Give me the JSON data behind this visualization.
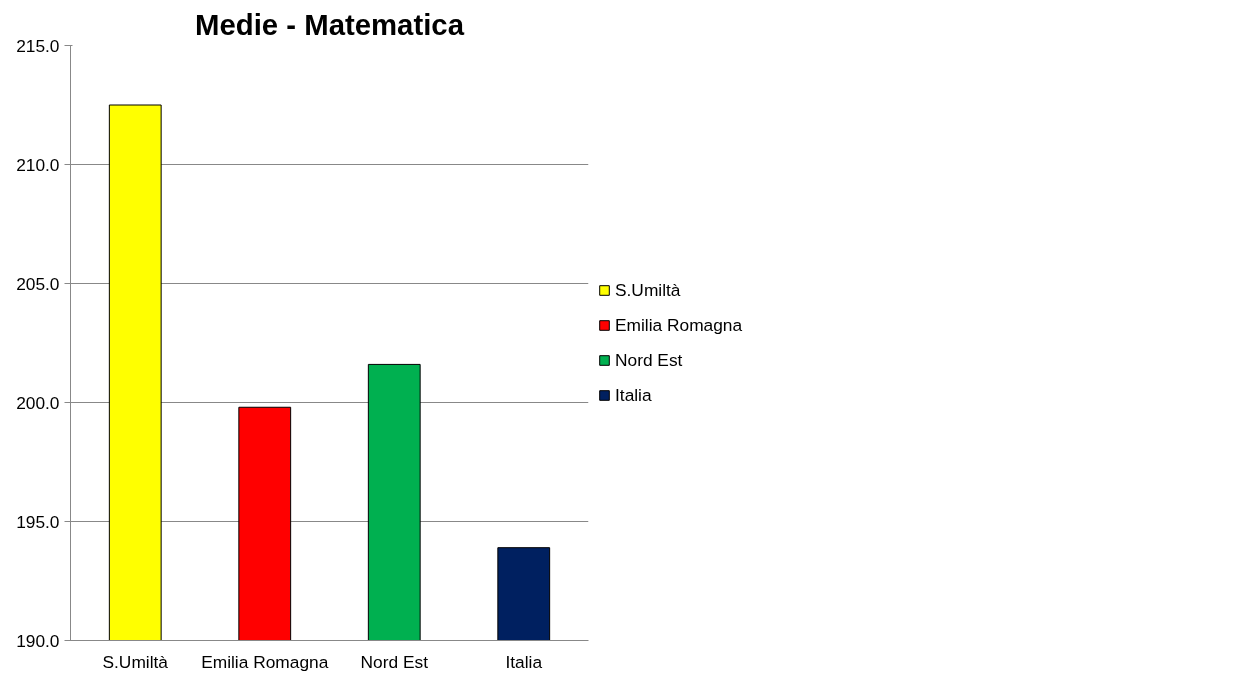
{
  "chart_data": {
    "type": "bar",
    "title": "Medie - Matematica",
    "categories": [
      "S.Umiltà",
      "Emilia Romagna",
      "Nord Est",
      "Italia"
    ],
    "series": [
      {
        "name": "S.Umiltà",
        "color": "#ffff00",
        "values": [
          212.5,
          null,
          null,
          null
        ]
      },
      {
        "name": "Emilia Romagna",
        "color": "#ff0000",
        "values": [
          null,
          199.8,
          null,
          null
        ]
      },
      {
        "name": "Nord Est",
        "color": "#00b050",
        "values": [
          null,
          null,
          201.6,
          null
        ]
      },
      {
        "name": "Italia",
        "color": "#002060",
        "values": [
          null,
          null,
          null,
          193.9
        ]
      }
    ],
    "ylim": [
      190,
      215
    ],
    "yticks": [
      {
        "value": 190,
        "label": "190.0"
      },
      {
        "value": 195,
        "label": "195.0"
      },
      {
        "value": 200,
        "label": "200.0"
      },
      {
        "value": 205,
        "label": "205.0"
      },
      {
        "value": 210,
        "label": "210.0"
      },
      {
        "value": 215,
        "label": "215.0"
      }
    ],
    "grid": "y",
    "legend": "right"
  }
}
